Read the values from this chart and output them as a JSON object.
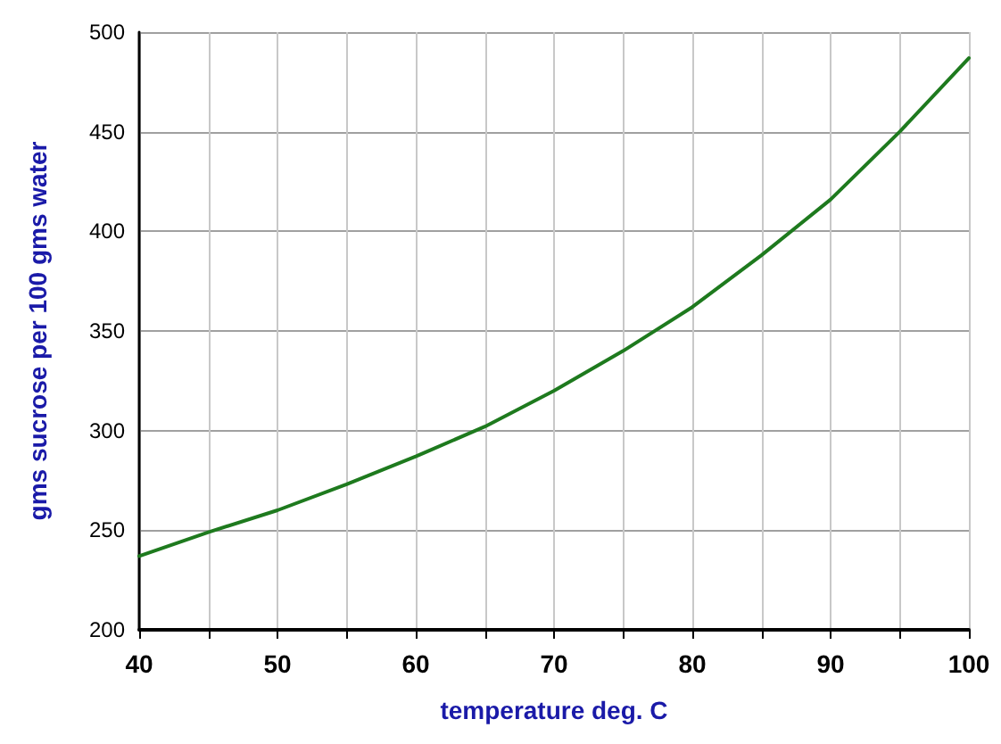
{
  "chart_data": {
    "type": "line",
    "xlabel": "temperature deg. C",
    "ylabel": "gms sucrose per 100 gms water",
    "x": [
      40,
      45,
      50,
      55,
      60,
      65,
      70,
      75,
      80,
      85,
      90,
      95,
      100
    ],
    "series": [
      {
        "color": "#1e7a1e",
        "values": [
          237,
          249,
          260,
          273,
          287,
          302,
          320,
          340,
          362,
          388,
          416,
          450,
          487
        ]
      }
    ],
    "xlim": [
      40,
      100
    ],
    "ylim": [
      200,
      500
    ],
    "xticks": [
      40,
      {
        "value": 45,
        "label": null
      },
      50,
      {
        "value": 55,
        "label": null
      },
      60,
      {
        "value": 65,
        "label": null
      },
      70,
      {
        "value": 75,
        "label": null
      },
      80,
      {
        "value": 85,
        "label": null
      },
      90,
      {
        "value": 95,
        "label": null
      },
      100
    ],
    "yticks": [
      200,
      250,
      300,
      350,
      400,
      450,
      500
    ],
    "grid": true,
    "marker": "none",
    "line_style": "solid"
  }
}
